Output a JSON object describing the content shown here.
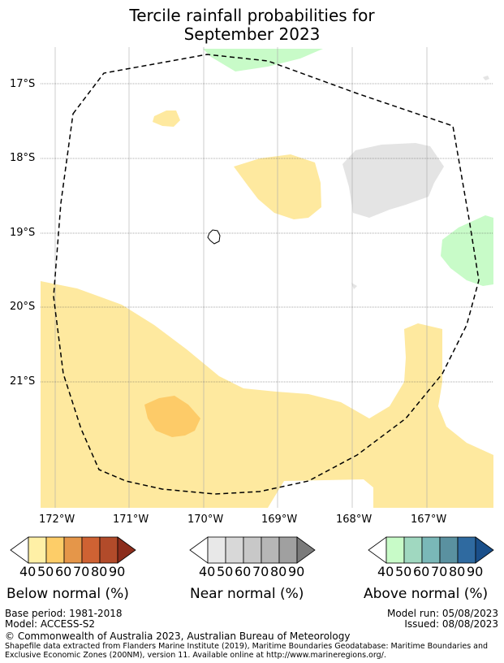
{
  "title": {
    "line1": "Tercile rainfall probabilities for",
    "line2": "September 2023"
  },
  "map": {
    "lat_labels": [
      "17°S",
      "18°S",
      "19°S",
      "20°S",
      "21°S"
    ],
    "lon_labels": [
      "172°W",
      "171°W",
      "170°W",
      "169°W",
      "168°W",
      "167°W"
    ],
    "colors": {
      "below_50": "#fee99f",
      "below_60": "#fdcb68",
      "near_50": "#e4e4e4",
      "above_50": "#c8fbc8",
      "grid": "#aaaaaa",
      "boundary": "#000000"
    }
  },
  "legend": {
    "ticks": [
      "40",
      "50",
      "60",
      "70",
      "80",
      "90"
    ],
    "below": {
      "label": "Below normal (%)",
      "colors": [
        "#fff0a6",
        "#fdcd68",
        "#e59649",
        "#cf6233",
        "#b24b2a",
        "#8c2d1c"
      ]
    },
    "near": {
      "label": "Near normal (%)",
      "colors": [
        "#e8e8e8",
        "#d8d8d8",
        "#c8c8c8",
        "#b6b6b6",
        "#a0a0a0",
        "#7a7a7a"
      ]
    },
    "above": {
      "label": "Above normal (%)",
      "colors": [
        "#c8fbc8",
        "#a0d8c0",
        "#7ab8b8",
        "#5a91a0",
        "#2f6aa0",
        "#1a4f8a"
      ]
    }
  },
  "footer": {
    "base_period": "Base period: 1981-2018",
    "model": "Model: ACCESS-S2",
    "model_run": "Model run: 05/08/2023",
    "issued": "Issued: 08/08/2023",
    "copyright": "© Commonwealth of Australia 2023, Australian Bureau of Meteorology",
    "shapefile_line1": "Shapefile data extracted from Flanders Marine Institute (2019), Maritime Boundaries Geodatabase: Maritime Boundaries and",
    "shapefile_line2": "Exclusive Economic Zones (200NM), version 11. Available online at http://www.marineregions.org/."
  }
}
